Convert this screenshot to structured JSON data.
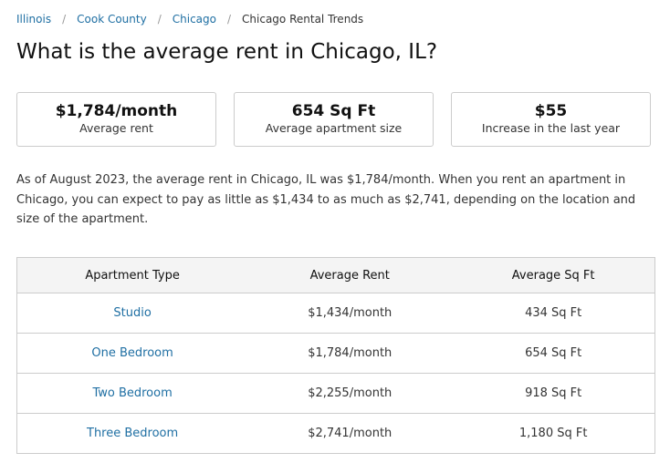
{
  "breadcrumb": [
    {
      "label": "Illinois"
    },
    {
      "label": "Cook County"
    },
    {
      "label": "Chicago"
    }
  ],
  "breadcrumb_current": "Chicago Rental Trends",
  "breadcrumb_separator": "/",
  "title": "What is the average rent in Chicago, IL?",
  "cards": [
    {
      "value": "$1,784/month",
      "label": "Average rent"
    },
    {
      "value": "654 Sq Ft",
      "label": "Average apartment size"
    },
    {
      "value": "$55",
      "label": "Increase in the last year"
    }
  ],
  "description": "As of August 2023, the average rent in Chicago, IL was $1,784/month. When you rent an apartment in Chicago, you can expect to pay as little as $1,434 to as much as $2,741, depending on the location and size of the apartment.",
  "table": {
    "headers": [
      "Apartment Type",
      "Average Rent",
      "Average Sq Ft"
    ],
    "rows": [
      [
        "Studio",
        "$1,434/month",
        "434 Sq Ft"
      ],
      [
        "One Bedroom",
        "$1,784/month",
        "654 Sq Ft"
      ],
      [
        "Two Bedroom",
        "$2,255/month",
        "918 Sq Ft"
      ],
      [
        "Three Bedroom",
        "$2,741/month",
        "1,180 Sq Ft"
      ]
    ]
  },
  "colors": {
    "link": "#1f6fa3",
    "border": "#cccccc",
    "header_bg": "#f4f4f4"
  }
}
